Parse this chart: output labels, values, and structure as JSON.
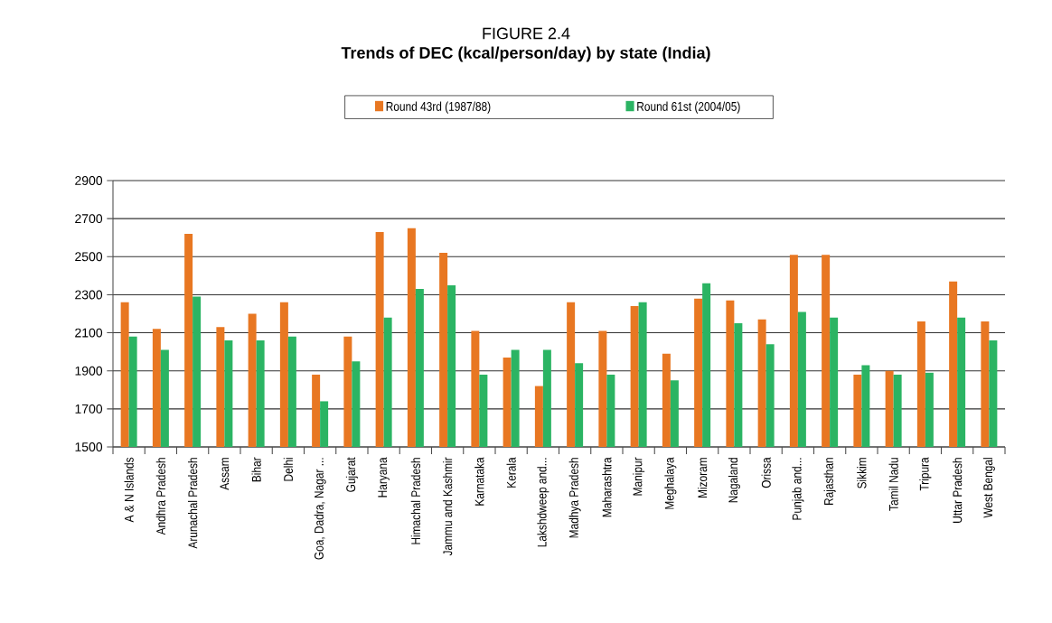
{
  "chart_data": {
    "type": "bar",
    "subtitle": "FIGURE 2.4",
    "title": "Trends of DEC (kcal/person/day) by state (India)",
    "categories": [
      "A & N Islands",
      "Andhra Pradesh",
      "Arunachal Pradesh",
      "Assam",
      "Bihar",
      "Delhi",
      "Goa, Dadra, Nagar ...",
      "Gujarat",
      "Haryana",
      "Himachal Pradesh",
      "Jammu and Kashmir",
      "Karnataka",
      "Kerala",
      "Lakshdweep and...",
      "Madhya Pradesh",
      "Maharashtra",
      "Manipur",
      "Meghalaya",
      "Mizoram",
      "Nagaland",
      "Orissa",
      "Punjab and...",
      "Rajasthan",
      "Sikkim",
      "Tamil Nadu",
      "Tripura",
      "Uttar Pradesh",
      "West Bengal"
    ],
    "series": [
      {
        "name": "Round 43rd (1987/88)",
        "color": "#e87722",
        "values": [
          2260,
          2120,
          2620,
          2130,
          2200,
          2260,
          1880,
          2080,
          2630,
          2650,
          2520,
          2110,
          1970,
          1820,
          2260,
          2110,
          2240,
          1990,
          2280,
          2270,
          2170,
          2510,
          2510,
          1880,
          1900,
          2160,
          2370,
          2160
        ]
      },
      {
        "name": "Round 61st (2004/05)",
        "color": "#2bb463",
        "values": [
          2080,
          2010,
          2290,
          2060,
          2060,
          2080,
          1740,
          1950,
          2180,
          2330,
          2350,
          1880,
          2010,
          2010,
          1940,
          1880,
          2260,
          1850,
          2360,
          2150,
          2040,
          2210,
          2180,
          1930,
          1880,
          1890,
          2180,
          2060
        ]
      }
    ],
    "ylim": [
      1500,
      2900
    ],
    "yticks": [
      1500,
      1700,
      1900,
      2100,
      2300,
      2500,
      2700,
      2900
    ],
    "grid": "y",
    "legend": "top"
  }
}
